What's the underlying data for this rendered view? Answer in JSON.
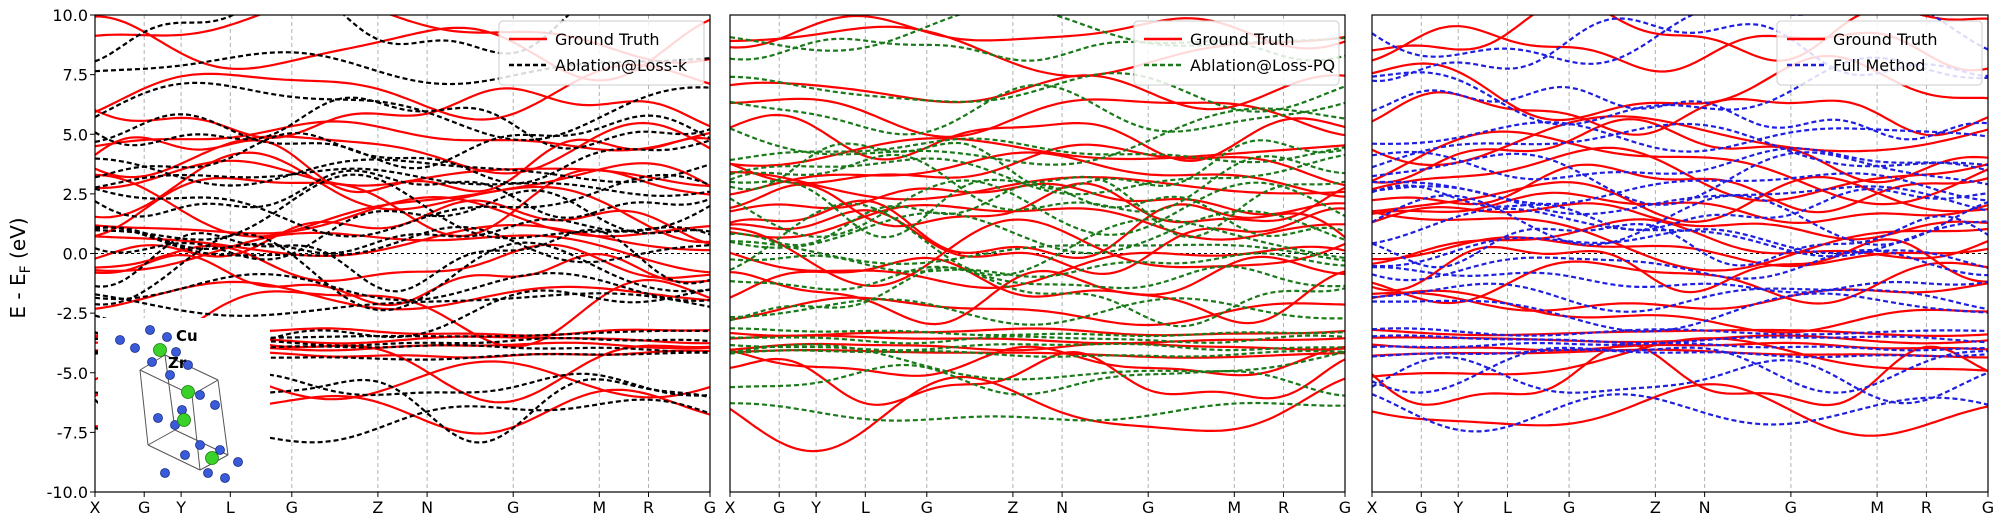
{
  "figure": {
    "ylabel": "E - E",
    "ylabel_sub": "F",
    "ylabel_tail": " (eV)"
  },
  "inset": {
    "atoms": [
      "Cu",
      "Zr"
    ],
    "colors": {
      "Cu": "#3a5bd9",
      "Zr": "#39d12a"
    }
  },
  "chart_data": [
    {
      "type": "line",
      "panel": "left",
      "xticks": [
        "X",
        "G",
        "Y",
        "L",
        "G",
        "Z",
        "N",
        "G",
        "M",
        "R",
        "G"
      ],
      "ylim": [
        -10.0,
        10.0
      ],
      "yticks": [
        10.0,
        7.5,
        5.0,
        2.5,
        0.0,
        -2.5,
        -5.0,
        -7.5,
        -10.0
      ],
      "fermi_line": 0.0,
      "legend": {
        "placement": "top-right",
        "entries": [
          "Ground Truth",
          "Ablation@Loss-k"
        ]
      },
      "series": [
        {
          "name": "Ground Truth",
          "style": "solid",
          "color": "#ff0000",
          "levels": [
            9.3,
            8.6,
            6.8,
            5.9,
            4.9,
            4.3,
            3.7,
            3.3,
            2.8,
            2.3,
            1.9,
            1.4,
            0.9,
            0.5,
            0.1,
            -0.5,
            -1.1,
            -1.8,
            -2.4,
            -3.3,
            -3.6,
            -3.9,
            -4.2,
            -4.6,
            -5.3,
            -6.6
          ]
        },
        {
          "name": "Ablation@Loss-k",
          "style": "dashed",
          "color": "#000000",
          "levels": [
            9.6,
            7.8,
            6.1,
            5.5,
            4.7,
            4.0,
            3.5,
            3.0,
            2.5,
            2.0,
            1.6,
            1.1,
            0.7,
            0.3,
            -0.2,
            -0.8,
            -1.4,
            -2.1,
            -2.7,
            -3.4,
            -3.7,
            -4.0,
            -4.3,
            -5.6,
            -6.3,
            -7.0
          ]
        }
      ]
    },
    {
      "type": "line",
      "panel": "middle",
      "xticks": [
        "X",
        "G",
        "Y",
        "L",
        "G",
        "Z",
        "N",
        "G",
        "M",
        "R",
        "G"
      ],
      "ylim": [
        -10.0,
        10.0
      ],
      "fermi_line": 0.0,
      "legend": {
        "placement": "top-right",
        "entries": [
          "Ground Truth",
          "Ablation@Loss-PQ"
        ]
      },
      "series": [
        {
          "name": "Ground Truth",
          "style": "solid",
          "color": "#ff0000",
          "levels": [
            9.3,
            8.6,
            6.8,
            5.9,
            4.9,
            4.3,
            3.7,
            3.3,
            2.8,
            2.3,
            1.9,
            1.4,
            0.9,
            0.5,
            0.1,
            -0.5,
            -1.1,
            -1.8,
            -2.4,
            -3.3,
            -3.6,
            -3.9,
            -4.2,
            -4.6,
            -5.3,
            -6.6
          ]
        },
        {
          "name": "Ablation@Loss-PQ",
          "style": "dashed",
          "color": "#1a7a1a",
          "levels": [
            9.3,
            8.6,
            6.8,
            5.9,
            4.9,
            4.3,
            3.7,
            3.3,
            2.8,
            2.3,
            1.9,
            1.4,
            0.9,
            0.5,
            0.1,
            -0.5,
            -1.1,
            -1.8,
            -2.4,
            -3.3,
            -3.6,
            -3.9,
            -4.2,
            -4.6,
            -5.3,
            -6.6
          ]
        }
      ]
    },
    {
      "type": "line",
      "panel": "right",
      "xticks": [
        "X",
        "G",
        "Y",
        "L",
        "G",
        "Z",
        "N",
        "G",
        "M",
        "R",
        "G"
      ],
      "ylim": [
        -10.0,
        10.0
      ],
      "fermi_line": 0.0,
      "legend": {
        "placement": "top-right",
        "entries": [
          "Ground Truth",
          "Full Method"
        ]
      },
      "series": [
        {
          "name": "Ground Truth",
          "style": "solid",
          "color": "#ff0000",
          "levels": [
            9.3,
            8.6,
            6.8,
            5.9,
            4.9,
            4.3,
            3.7,
            3.3,
            2.8,
            2.3,
            1.9,
            1.4,
            0.9,
            0.5,
            0.1,
            -0.5,
            -1.1,
            -1.8,
            -2.4,
            -3.3,
            -3.6,
            -3.9,
            -4.2,
            -4.6,
            -5.3,
            -6.6
          ]
        },
        {
          "name": "Full Method",
          "style": "dashed",
          "color": "#1f1fe0",
          "levels": [
            9.3,
            8.6,
            6.8,
            5.9,
            4.9,
            4.3,
            3.7,
            3.3,
            2.8,
            2.3,
            1.9,
            1.4,
            0.9,
            0.5,
            0.1,
            -0.5,
            -1.1,
            -1.8,
            -2.4,
            -3.3,
            -3.6,
            -3.9,
            -4.2,
            -4.6,
            -5.3,
            -6.6
          ]
        }
      ]
    }
  ]
}
